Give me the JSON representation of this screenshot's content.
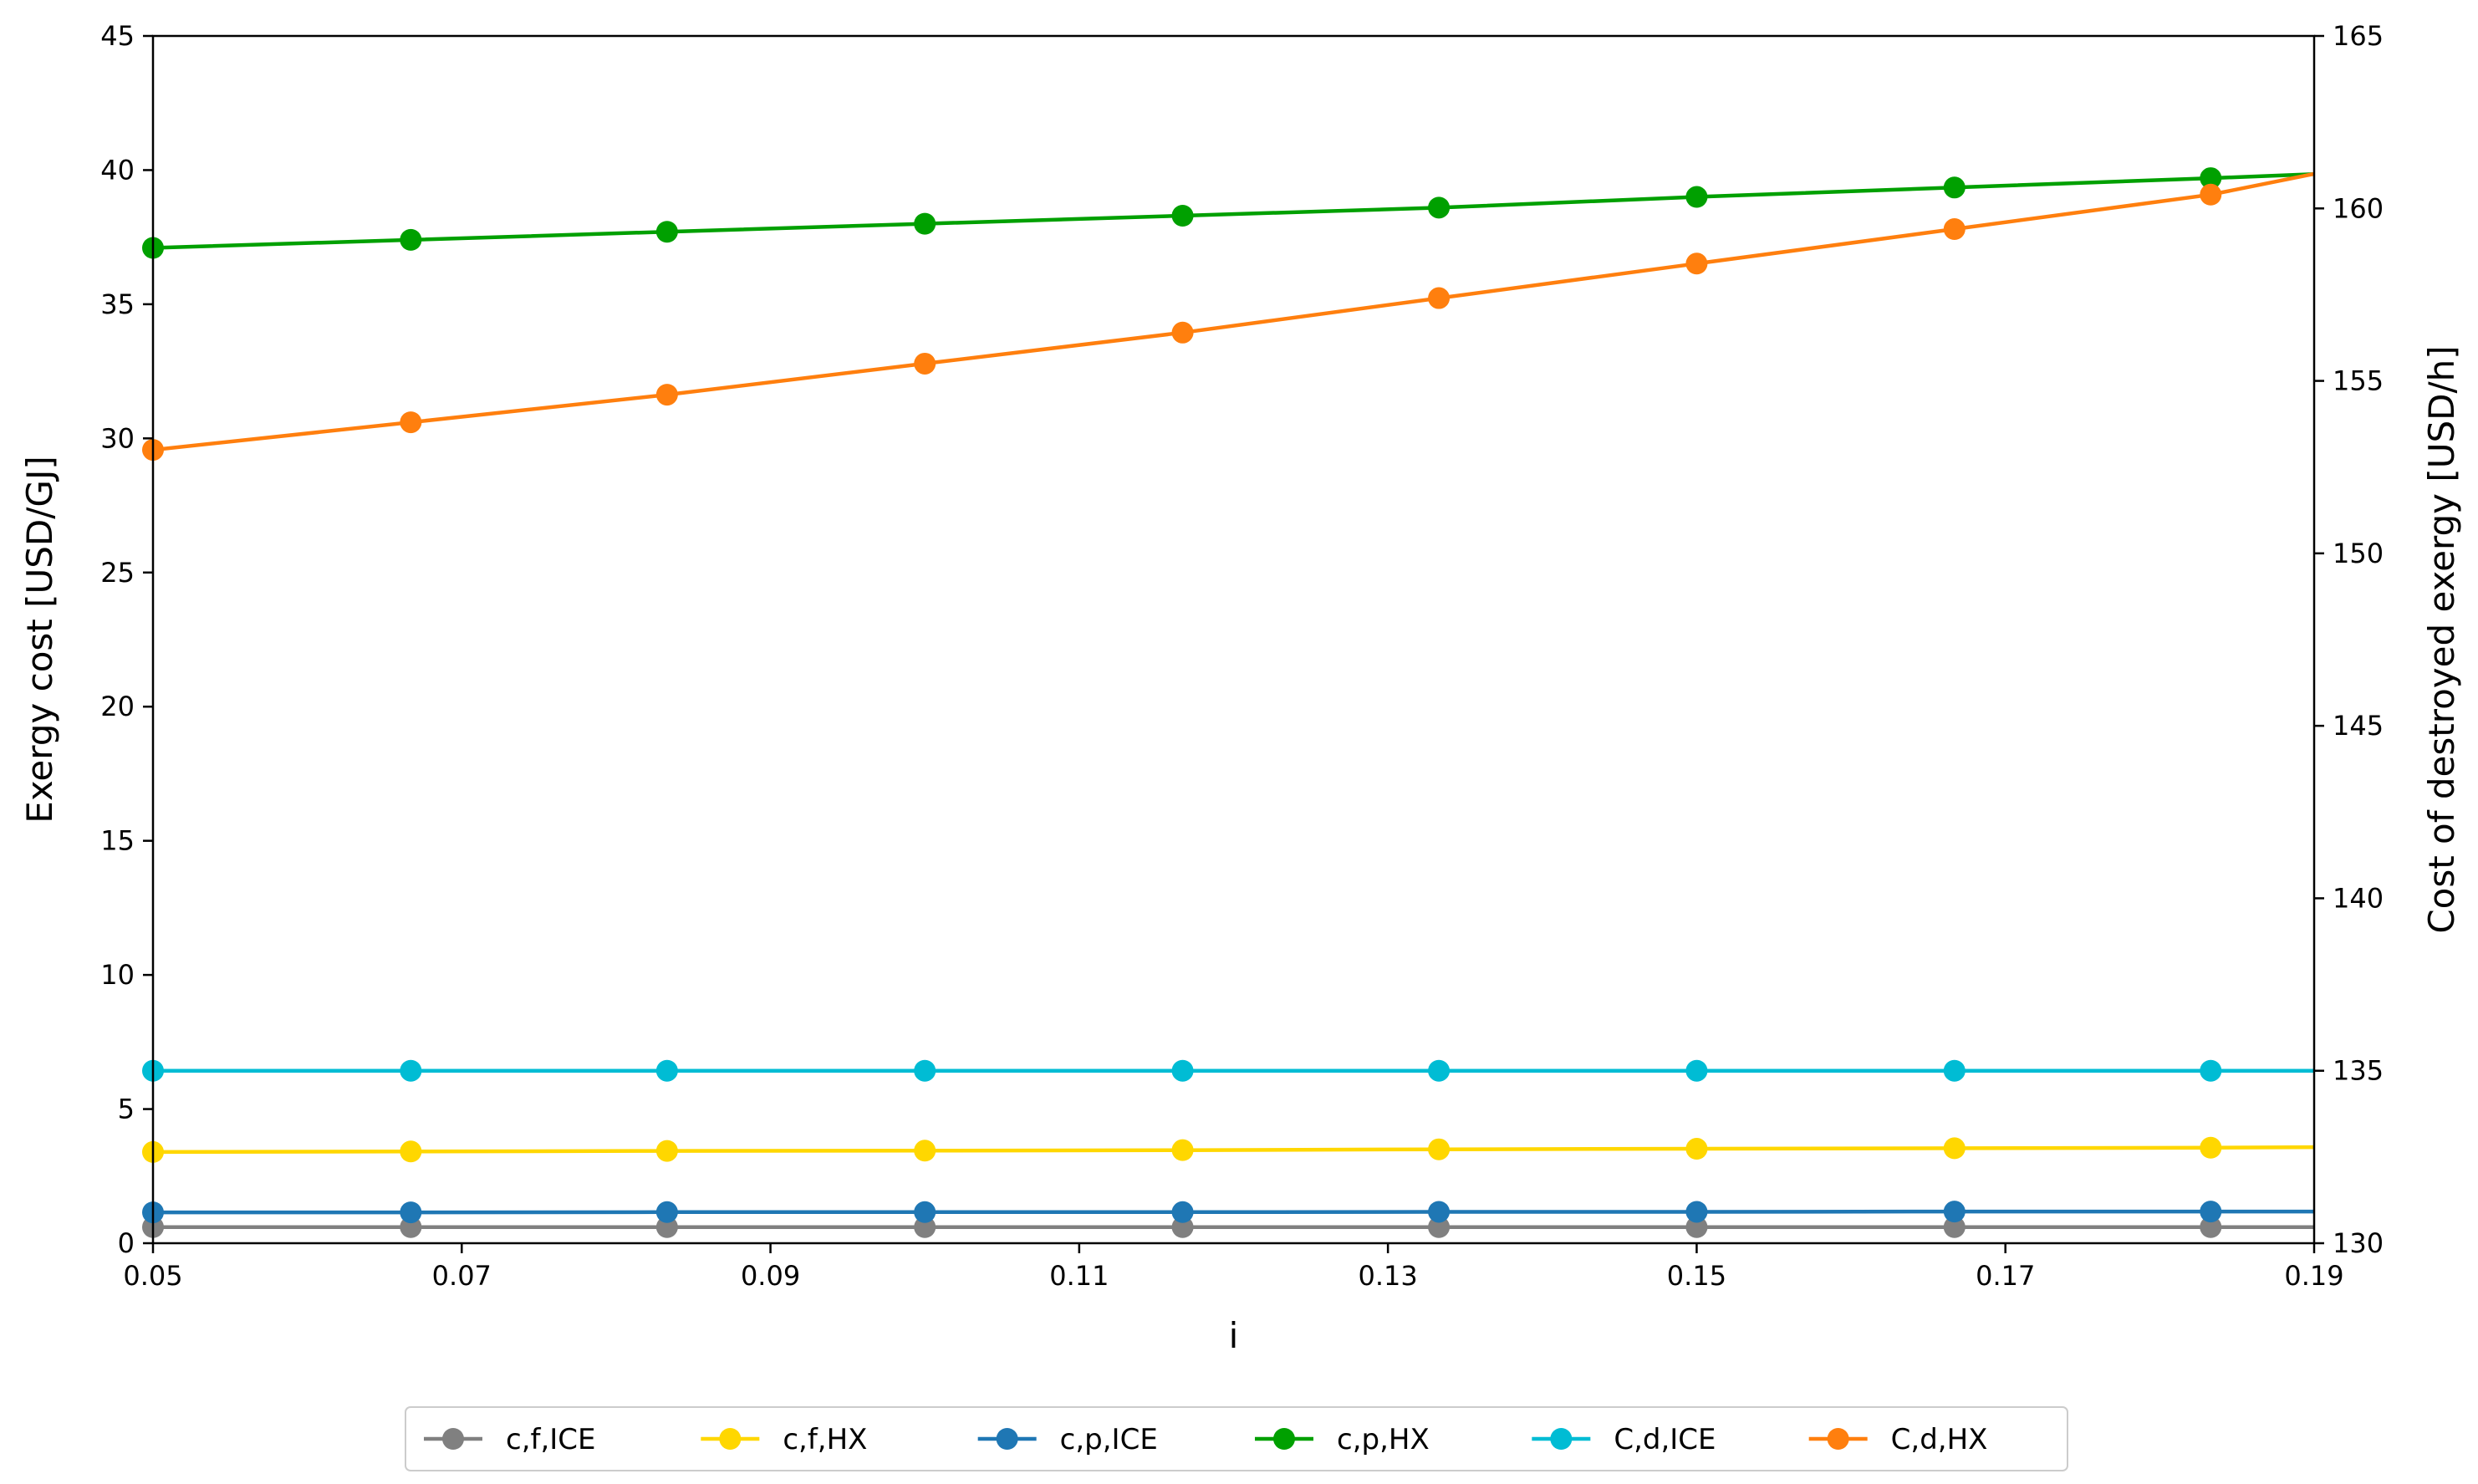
{
  "chart_data": {
    "type": "line",
    "title": "",
    "xlabel": "i",
    "ylabel_left": "Exergy cost [USD/GJ]",
    "ylabel_right": "Cost of destroyed exergy [USD/h]",
    "xlim": [
      0.05,
      0.19
    ],
    "ylim_left": [
      0,
      45
    ],
    "ylim_right": [
      130,
      165
    ],
    "x_ticks": [
      "0.05",
      "0.07",
      "0.09",
      "0.11",
      "0.13",
      "0.15",
      "0.17",
      "0.19"
    ],
    "y_ticks_left": [
      "0",
      "5",
      "10",
      "15",
      "20",
      "25",
      "30",
      "35",
      "40",
      "45"
    ],
    "y_ticks_right": [
      "130",
      "135",
      "140",
      "145",
      "150",
      "155",
      "160",
      "165"
    ],
    "grid": false,
    "legend_position": "bottom-center, below plot",
    "x": [
      0.05,
      0.0667,
      0.0833,
      0.1,
      0.1167,
      0.1333,
      0.15,
      0.1667,
      0.1833,
      0.19
    ],
    "series": [
      {
        "name": "c,f,ICE",
        "axis": "left",
        "color": "#808080",
        "values": [
          0.6,
          0.6,
          0.6,
          0.6,
          0.6,
          0.6,
          0.6,
          0.6,
          0.6,
          0.6
        ]
      },
      {
        "name": "c,f,HX",
        "axis": "left",
        "color": "#ffd700",
        "values": [
          3.4,
          3.42,
          3.44,
          3.45,
          3.47,
          3.5,
          3.52,
          3.54,
          3.56,
          3.58
        ]
      },
      {
        "name": "c,p,ICE",
        "axis": "left",
        "color": "#1f77b4",
        "values": [
          1.15,
          1.15,
          1.16,
          1.16,
          1.16,
          1.17,
          1.17,
          1.18,
          1.18,
          1.18
        ]
      },
      {
        "name": "c,p,HX",
        "axis": "left",
        "color": "#00a000",
        "values": [
          37.1,
          37.4,
          37.7,
          38.0,
          38.3,
          38.6,
          39.0,
          39.35,
          39.7,
          39.85
        ]
      },
      {
        "name": "C,d,ICE",
        "axis": "right",
        "color": "#00bcd4",
        "values": [
          135.0,
          135.0,
          135.0,
          135.0,
          135.0,
          135.0,
          135.0,
          135.0,
          135.0,
          135.0
        ]
      },
      {
        "name": "C,d,HX",
        "axis": "right",
        "color": "#ff7f0e",
        "values": [
          153.0,
          153.8,
          154.6,
          155.5,
          156.4,
          157.4,
          158.4,
          159.4,
          160.4,
          161.0
        ]
      }
    ],
    "marker_count": 9
  }
}
